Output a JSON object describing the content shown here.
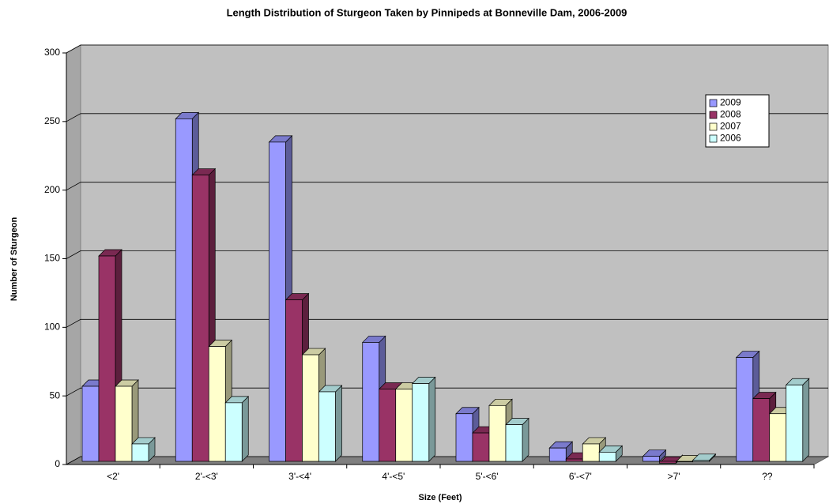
{
  "chart_data": {
    "type": "bar3d",
    "title": "Length Distribution of Sturgeon Taken by Pinnipeds at Bonneville Dam, 2006-2009",
    "x_label": "Size (Feet)",
    "y_label": "Number of Sturgeon",
    "categories": [
      "<2'",
      "2'-<3'",
      "3'-<4'",
      "4'-<5'",
      "5'-<6'",
      "6'-<7'",
      ">7'",
      "??"
    ],
    "series": [
      {
        "name": "2009",
        "color": "#9999ff",
        "values": [
          57,
          252,
          235,
          89,
          37,
          12,
          6,
          78
        ]
      },
      {
        "name": "2008",
        "color": "#993366",
        "values": [
          152,
          211,
          120,
          55,
          23,
          4,
          1,
          48
        ]
      },
      {
        "name": "2007",
        "color": "#ffffcc",
        "values": [
          57,
          86,
          80,
          55,
          43,
          15,
          2,
          37
        ]
      },
      {
        "name": "2006",
        "color": "#ccffff",
        "values": [
          15,
          45,
          53,
          59,
          29,
          9,
          3,
          58
        ]
      }
    ],
    "ylim": [
      0,
      300
    ],
    "yticks": [
      0,
      50,
      100,
      150,
      200,
      250,
      300
    ],
    "grid": true,
    "legend": "upper-right"
  }
}
